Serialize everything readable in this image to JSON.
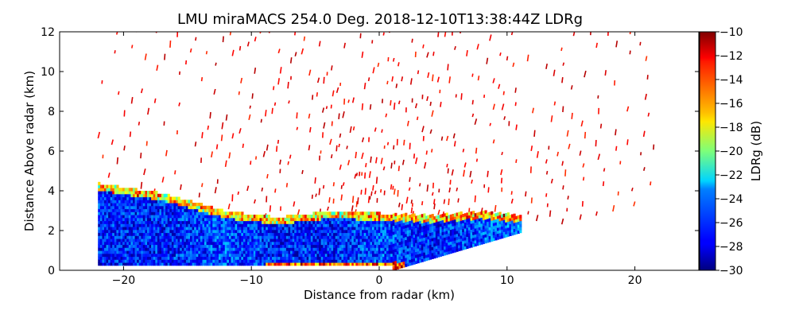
{
  "chart_data": {
    "type": "heatmap",
    "title": "LMU miraMACS 254.0 Deg. 2018-12-10T13:38:44Z  LDRg",
    "xlabel": "Distance from radar (km)",
    "ylabel": "Distance Above radar  (km)",
    "xlim": [
      -25,
      25
    ],
    "ylim": [
      0,
      12
    ],
    "xticks": [
      -20,
      -10,
      0,
      10,
      20
    ],
    "xtick_labels": [
      "−20",
      "−10",
      "0",
      "10",
      "20"
    ],
    "yticks": [
      0,
      2,
      4,
      6,
      8,
      10,
      12
    ],
    "ytick_labels": [
      "0",
      "2",
      "4",
      "6",
      "8",
      "10",
      "12"
    ],
    "colorbar": {
      "label": "LDRg (dB)",
      "range": [
        -30,
        -10
      ],
      "colormap": "jet",
      "ticks": [
        -10,
        -12,
        -14,
        -16,
        -18,
        -20,
        -22,
        -24,
        -26,
        -28,
        -30
      ],
      "tick_labels": [
        "−10",
        "−12",
        "−14",
        "−16",
        "−18",
        "−20",
        "−22",
        "−24",
        "−26",
        "−28",
        "−30"
      ]
    },
    "scan": {
      "azimuth_deg": 254.0,
      "timestamp": "2018-12-10T13:38:44Z",
      "left_edge_km": -22,
      "right_edge_km": 21.5,
      "cloud_layer": [
        {
          "x": -22,
          "top": 4.3,
          "ldr": -27
        },
        {
          "x": -17,
          "top": 3.8,
          "ldr": -27
        },
        {
          "x": -12,
          "top": 2.9,
          "ldr": -26
        },
        {
          "x": -8,
          "top": 2.6,
          "ldr": -27
        },
        {
          "x": -4,
          "top": 2.9,
          "ldr": -27
        },
        {
          "x": 0,
          "top": 2.8,
          "ldr": -26
        },
        {
          "x": 4,
          "top": 2.7,
          "ldr": -27
        },
        {
          "x": 8,
          "top": 2.9,
          "ldr": -26
        },
        {
          "x": 11,
          "top": 2.7,
          "ldr": -25
        }
      ],
      "noise_ldr": -11
    }
  }
}
